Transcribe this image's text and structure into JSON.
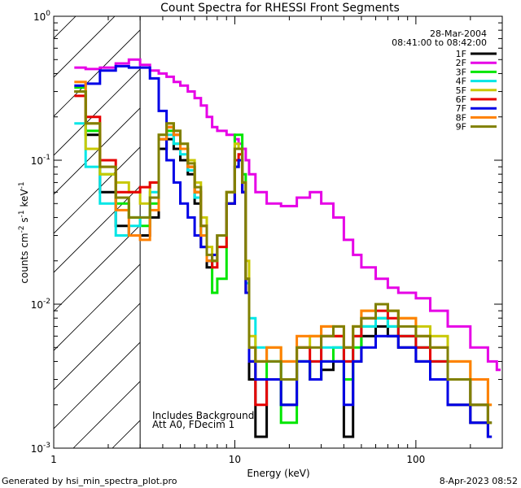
{
  "chart_data": {
    "type": "line",
    "title": "Count Spectra for RHESSI Front Segments",
    "xlabel": "Energy (keV)",
    "ylabel": {
      "base": "counts cm",
      "sup1": "-2",
      "mid1": " s",
      "sup2": "-1",
      "mid2": " keV",
      "sup3": "-1"
    },
    "xscale": "log",
    "yscale": "log",
    "xlim": [
      1,
      300
    ],
    "ylim": [
      0.001,
      1
    ],
    "x_ticks": [
      {
        "value": 1,
        "label": "1"
      },
      {
        "value": 10,
        "label": "10"
      },
      {
        "value": 100,
        "label": "100"
      }
    ],
    "y_ticks": [
      {
        "value": 1,
        "label": "10",
        "sup": "0"
      },
      {
        "value": 0.1,
        "label": "10",
        "sup": "-1"
      },
      {
        "value": 0.01,
        "label": "10",
        "sup": "-2"
      },
      {
        "value": 0.001,
        "label": "10",
        "sup": "-3"
      }
    ],
    "attenuator_cutoff_kev": 3,
    "header_text": [
      "28-Mar-2004",
      "08:41:00 to 08:42:00"
    ],
    "annotations": [
      "Includes Background",
      "Att A0, FDecim 1"
    ],
    "legend_position": "top-right",
    "series": [
      {
        "name": "1F",
        "color": "#000000",
        "x": [
          1.3,
          1.5,
          1.8,
          2.2,
          2.6,
          3.0,
          3.4,
          3.8,
          4.2,
          4.6,
          5.0,
          5.5,
          6.0,
          6.5,
          7.0,
          7.5,
          8.0,
          9.0,
          10.0,
          10.5,
          11.0,
          11.5,
          12.0,
          13.0,
          15.0,
          18.0,
          22.0,
          26.0,
          30.0,
          35.0,
          40.0,
          45.0,
          50.0,
          60.0,
          70.0,
          80.0,
          100.0,
          120.0,
          150.0,
          200.0,
          250.0
        ],
        "y": [
          0.3,
          0.15,
          0.06,
          0.035,
          0.03,
          0.03,
          0.04,
          0.12,
          0.14,
          0.12,
          0.1,
          0.08,
          0.05,
          0.025,
          0.018,
          0.02,
          0.03,
          0.05,
          0.09,
          0.1,
          0.06,
          0.012,
          0.003,
          0.0012,
          0.003,
          0.002,
          0.004,
          0.003,
          0.0035,
          0.004,
          0.0012,
          0.004,
          0.006,
          0.007,
          0.006,
          0.005,
          0.004,
          0.003,
          0.002,
          0.0015,
          0.0012
        ]
      },
      {
        "name": "2F",
        "color": "#e600e6",
        "x": [
          1.3,
          1.5,
          1.8,
          2.2,
          2.6,
          3.0,
          3.4,
          3.8,
          4.2,
          4.6,
          5.0,
          5.5,
          6.0,
          6.5,
          7.0,
          7.5,
          8.0,
          9.0,
          10.0,
          10.5,
          11.0,
          11.5,
          12.0,
          13.0,
          15.0,
          18.0,
          22.0,
          26.0,
          30.0,
          35.0,
          40.0,
          45.0,
          50.0,
          60.0,
          70.0,
          80.0,
          100.0,
          120.0,
          150.0,
          200.0,
          250.0,
          280.0
        ],
        "y": [
          0.44,
          0.43,
          0.44,
          0.47,
          0.5,
          0.46,
          0.42,
          0.4,
          0.38,
          0.35,
          0.33,
          0.3,
          0.27,
          0.24,
          0.2,
          0.17,
          0.16,
          0.15,
          0.14,
          0.13,
          0.12,
          0.1,
          0.08,
          0.06,
          0.05,
          0.048,
          0.055,
          0.06,
          0.05,
          0.04,
          0.028,
          0.022,
          0.018,
          0.015,
          0.013,
          0.012,
          0.011,
          0.009,
          0.007,
          0.005,
          0.004,
          0.0035
        ]
      },
      {
        "name": "3F",
        "color": "#00e600",
        "x": [
          1.3,
          1.5,
          1.8,
          2.2,
          2.6,
          3.0,
          3.4,
          3.8,
          4.2,
          4.6,
          5.0,
          5.5,
          6.0,
          6.5,
          7.0,
          7.5,
          8.0,
          9.0,
          10.0,
          10.5,
          11.0,
          11.5,
          12.0,
          13.0,
          15.0,
          18.0,
          22.0,
          26.0,
          30.0,
          35.0,
          40.0,
          45.0,
          50.0,
          60.0,
          70.0,
          80.0,
          100.0,
          120.0,
          150.0,
          200.0,
          250.0
        ],
        "y": [
          0.32,
          0.16,
          0.08,
          0.05,
          0.04,
          0.035,
          0.05,
          0.14,
          0.16,
          0.13,
          0.12,
          0.09,
          0.06,
          0.03,
          0.02,
          0.012,
          0.015,
          0.05,
          0.15,
          0.15,
          0.08,
          0.015,
          0.004,
          0.003,
          0.004,
          0.0015,
          0.004,
          0.003,
          0.004,
          0.005,
          0.003,
          0.005,
          0.007,
          0.008,
          0.007,
          0.006,
          0.005,
          0.004,
          0.003,
          0.002,
          0.0015
        ]
      },
      {
        "name": "4F",
        "color": "#00e6e6",
        "x": [
          1.3,
          1.5,
          1.8,
          2.2,
          2.6,
          3.0,
          3.4,
          3.8,
          4.2,
          4.6,
          5.0,
          5.5,
          6.0,
          6.5,
          7.0,
          7.5,
          8.0,
          9.0,
          10.0,
          10.5,
          11.0,
          11.5,
          12.0,
          13.0,
          15.0,
          18.0,
          22.0,
          26.0,
          30.0,
          35.0,
          40.0,
          45.0,
          50.0,
          60.0,
          70.0,
          80.0,
          100.0,
          120.0,
          150.0,
          200.0,
          250.0
        ],
        "y": [
          0.18,
          0.09,
          0.05,
          0.03,
          0.035,
          0.04,
          0.06,
          0.14,
          0.15,
          0.13,
          0.11,
          0.085,
          0.055,
          0.03,
          0.02,
          0.02,
          0.03,
          0.06,
          0.12,
          0.12,
          0.07,
          0.014,
          0.008,
          0.005,
          0.004,
          0.003,
          0.004,
          0.004,
          0.005,
          0.005,
          0.004,
          0.006,
          0.007,
          0.008,
          0.007,
          0.006,
          0.005,
          0.004,
          0.003,
          0.002,
          0.0015
        ]
      },
      {
        "name": "5F",
        "color": "#c8c800",
        "x": [
          1.3,
          1.5,
          1.8,
          2.2,
          2.6,
          3.0,
          3.4,
          3.8,
          4.2,
          4.6,
          5.0,
          5.5,
          6.0,
          6.5,
          7.0,
          7.5,
          8.0,
          9.0,
          10.0,
          10.5,
          11.0,
          11.5,
          12.0,
          13.0,
          15.0,
          18.0,
          22.0,
          26.0,
          30.0,
          35.0,
          40.0,
          45.0,
          50.0,
          60.0,
          70.0,
          80.0,
          100.0,
          120.0,
          150.0,
          200.0,
          250.0
        ],
        "y": [
          0.3,
          0.12,
          0.08,
          0.07,
          0.06,
          0.05,
          0.07,
          0.15,
          0.18,
          0.16,
          0.13,
          0.1,
          0.07,
          0.04,
          0.025,
          0.022,
          0.03,
          0.06,
          0.13,
          0.12,
          0.07,
          0.02,
          0.006,
          0.004,
          0.005,
          0.004,
          0.005,
          0.006,
          0.007,
          0.006,
          0.005,
          0.007,
          0.009,
          0.01,
          0.009,
          0.008,
          0.007,
          0.006,
          0.004,
          0.003,
          0.002
        ]
      },
      {
        "name": "6F",
        "color": "#e60000",
        "x": [
          1.3,
          1.5,
          1.8,
          2.2,
          2.6,
          3.0,
          3.4,
          3.8,
          4.2,
          4.6,
          5.0,
          5.5,
          6.0,
          6.5,
          7.0,
          7.5,
          8.0,
          9.0,
          10.0,
          10.5,
          11.0,
          11.5,
          12.0,
          13.0,
          15.0,
          18.0,
          22.0,
          26.0,
          30.0,
          35.0,
          40.0,
          45.0,
          50.0,
          60.0,
          70.0,
          80.0,
          100.0,
          120.0,
          150.0,
          200.0,
          250.0
        ],
        "y": [
          0.28,
          0.2,
          0.1,
          0.06,
          0.06,
          0.065,
          0.07,
          0.14,
          0.17,
          0.15,
          0.12,
          0.09,
          0.06,
          0.035,
          0.02,
          0.018,
          0.025,
          0.05,
          0.1,
          0.11,
          0.06,
          0.012,
          0.004,
          0.002,
          0.003,
          0.003,
          0.005,
          0.004,
          0.006,
          0.006,
          0.004,
          0.006,
          0.008,
          0.009,
          0.008,
          0.006,
          0.005,
          0.004,
          0.003,
          0.002,
          0.0015
        ]
      },
      {
        "name": "7F",
        "color": "#0000e6",
        "x": [
          1.3,
          1.5,
          1.8,
          2.2,
          2.6,
          3.0,
          3.4,
          3.8,
          4.2,
          4.6,
          5.0,
          5.5,
          6.0,
          6.5,
          7.0,
          7.5,
          8.0,
          9.0,
          10.0,
          10.5,
          11.0,
          11.5,
          12.0,
          13.0,
          15.0,
          18.0,
          22.0,
          26.0,
          30.0,
          35.0,
          40.0,
          45.0,
          50.0,
          60.0,
          70.0,
          80.0,
          100.0,
          120.0,
          150.0,
          200.0,
          250.0
        ],
        "y": [
          0.33,
          0.34,
          0.42,
          0.45,
          0.44,
          0.44,
          0.37,
          0.22,
          0.1,
          0.07,
          0.05,
          0.04,
          0.03,
          0.025,
          0.02,
          0.022,
          0.03,
          0.05,
          0.09,
          0.1,
          0.06,
          0.012,
          0.004,
          0.003,
          0.003,
          0.002,
          0.004,
          0.003,
          0.004,
          0.004,
          0.002,
          0.004,
          0.005,
          0.006,
          0.006,
          0.005,
          0.004,
          0.003,
          0.002,
          0.0015,
          0.0012
        ]
      },
      {
        "name": "8F",
        "color": "#ff8000",
        "x": [
          1.3,
          1.5,
          1.8,
          2.2,
          2.6,
          3.0,
          3.4,
          3.8,
          4.2,
          4.6,
          5.0,
          5.5,
          6.0,
          6.5,
          7.0,
          7.5,
          8.0,
          9.0,
          10.0,
          10.5,
          11.0,
          11.5,
          12.0,
          13.0,
          15.0,
          18.0,
          22.0,
          26.0,
          30.0,
          35.0,
          40.0,
          45.0,
          50.0,
          60.0,
          70.0,
          80.0,
          100.0,
          120.0,
          150.0,
          200.0,
          250.0
        ],
        "y": [
          0.35,
          0.18,
          0.09,
          0.045,
          0.03,
          0.028,
          0.045,
          0.14,
          0.17,
          0.15,
          0.12,
          0.09,
          0.06,
          0.03,
          0.02,
          0.02,
          0.03,
          0.06,
          0.12,
          0.12,
          0.07,
          0.015,
          0.005,
          0.004,
          0.005,
          0.004,
          0.006,
          0.006,
          0.007,
          0.007,
          0.005,
          0.007,
          0.009,
          0.01,
          0.009,
          0.008,
          0.006,
          0.005,
          0.004,
          0.003,
          0.002
        ]
      },
      {
        "name": "9F",
        "color": "#808000",
        "x": [
          1.3,
          1.5,
          1.8,
          2.2,
          2.6,
          3.0,
          3.4,
          3.8,
          4.2,
          4.6,
          5.0,
          5.5,
          6.0,
          6.5,
          7.0,
          7.5,
          8.0,
          9.0,
          10.0,
          10.5,
          11.0,
          11.5,
          12.0,
          13.0,
          15.0,
          18.0,
          22.0,
          26.0,
          30.0,
          35.0,
          40.0,
          45.0,
          50.0,
          60.0,
          70.0,
          80.0,
          100.0,
          120.0,
          150.0,
          200.0,
          250.0
        ],
        "y": [
          0.3,
          0.18,
          0.09,
          0.055,
          0.04,
          0.04,
          0.055,
          0.15,
          0.18,
          0.16,
          0.13,
          0.095,
          0.065,
          0.035,
          0.022,
          0.02,
          0.03,
          0.06,
          0.12,
          0.12,
          0.07,
          0.015,
          0.005,
          0.004,
          0.004,
          0.003,
          0.005,
          0.005,
          0.006,
          0.007,
          0.005,
          0.007,
          0.008,
          0.01,
          0.009,
          0.007,
          0.006,
          0.005,
          0.003,
          0.002,
          0.0015
        ]
      }
    ]
  },
  "footer": {
    "generated_by": "Generated by hsi_min_spectra_plot.pro",
    "timestamp": "8-Apr-2023 08:52"
  }
}
